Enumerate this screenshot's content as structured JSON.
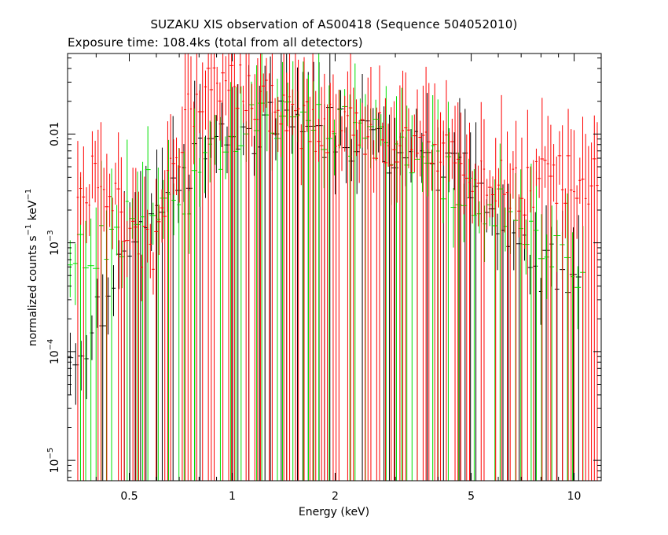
{
  "chart_data": {
    "type": "scatter",
    "title": "SUZAKU XIS observation of AS00418 (Sequence 504052010)",
    "subtitle": "Exposure time: 108.4ks (total from all detectors)",
    "xlabel": "Energy (keV)",
    "ylabel_main": "normalized counts s",
    "ylabel_unit": " keV",
    "ylabel_exp": "−1",
    "x_scale": "log",
    "y_scale": "log",
    "xlim": [
      0.33,
      12.0
    ],
    "ylim": [
      6.5e-06,
      0.055
    ],
    "x_ticks": [
      {
        "value": 0.5,
        "label": "0.5"
      },
      {
        "value": 1,
        "label": "1"
      },
      {
        "value": 2,
        "label": "2"
      },
      {
        "value": 5,
        "label": "5"
      },
      {
        "value": 10,
        "label": "10"
      }
    ],
    "y_ticks": [
      {
        "value": 0.01,
        "base": "0.01",
        "exp": ""
      },
      {
        "value": 0.001,
        "base": "10",
        "exp": "−3"
      },
      {
        "value": 0.0001,
        "base": "10",
        "exp": "−4"
      },
      {
        "value": 1e-05,
        "base": "10",
        "exp": "−5"
      }
    ],
    "grid": false,
    "series": [
      {
        "color": "#000000",
        "x_range": [
          0.33,
          10.5
        ],
        "n_bins": 95,
        "points": [
          {
            "x": 0.37,
            "y": 0.00011
          },
          {
            "x": 0.52,
            "y": 0.0011
          },
          {
            "x": 0.72,
            "y": 0.0045
          },
          {
            "x": 0.95,
            "y": 0.011
          },
          {
            "x": 1.3,
            "y": 0.012
          },
          {
            "x": 2.0,
            "y": 0.01
          },
          {
            "x": 3.0,
            "y": 0.007
          },
          {
            "x": 5.0,
            "y": 0.004
          },
          {
            "x": 8.0,
            "y": 0.0006
          }
        ]
      },
      {
        "color": "#00e000",
        "x_range": [
          0.33,
          10.8
        ],
        "n_bins": 100,
        "points": [
          {
            "x": 0.36,
            "y": 0.0007
          },
          {
            "x": 0.48,
            "y": 0.0012
          },
          {
            "x": 0.57,
            "y": 0.0035
          },
          {
            "x": 0.68,
            "y": 0.0017
          },
          {
            "x": 0.95,
            "y": 0.008
          },
          {
            "x": 1.3,
            "y": 0.013
          },
          {
            "x": 2.0,
            "y": 0.011
          },
          {
            "x": 3.0,
            "y": 0.008
          },
          {
            "x": 6.0,
            "y": 0.002
          },
          {
            "x": 10.0,
            "y": 0.0006
          }
        ]
      },
      {
        "color": "#ff0000",
        "x_range": [
          0.35,
          11.8
        ],
        "n_bins": 180,
        "points": [
          {
            "x": 0.38,
            "y": 0.0038
          },
          {
            "x": 0.42,
            "y": 0.0029
          },
          {
            "x": 0.47,
            "y": 0.0018
          },
          {
            "x": 0.58,
            "y": 0.0008
          },
          {
            "x": 0.75,
            "y": 0.016
          },
          {
            "x": 0.93,
            "y": 0.035
          },
          {
            "x": 1.5,
            "y": 0.013
          },
          {
            "x": 2.5,
            "y": 0.01
          },
          {
            "x": 4.0,
            "y": 0.006
          },
          {
            "x": 7.0,
            "y": 0.003
          },
          {
            "x": 10.0,
            "y": 0.004
          }
        ]
      }
    ]
  }
}
